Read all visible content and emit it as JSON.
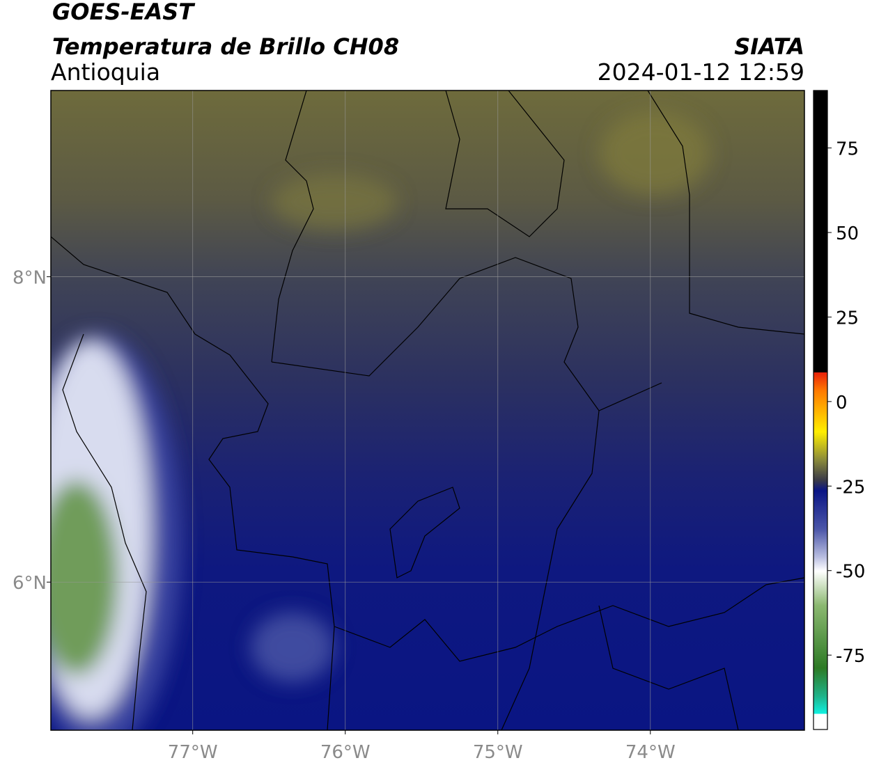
{
  "header": {
    "title": "GOES-EAST",
    "subtitle": "Temperatura de Brillo CH08",
    "region": "Antioquia",
    "source": "SIATA",
    "datetime": "2024-01-12 12:59"
  },
  "map": {
    "xlim": [
      -77.93,
      -72.99
    ],
    "ylim": [
      5.03,
      9.22
    ],
    "xticks": [
      {
        "value": -77,
        "label": "77°W"
      },
      {
        "value": -76,
        "label": "76°W"
      },
      {
        "value": -75,
        "label": "75°W"
      },
      {
        "value": -74,
        "label": "74°W"
      }
    ],
    "yticks": [
      {
        "value": 8,
        "label": "8°N"
      },
      {
        "value": 6,
        "label": "6°N"
      }
    ]
  },
  "colorbar": {
    "range": [
      -97,
      92
    ],
    "ticks": [
      75,
      50,
      25,
      0,
      -25,
      -50,
      -75
    ]
  }
}
